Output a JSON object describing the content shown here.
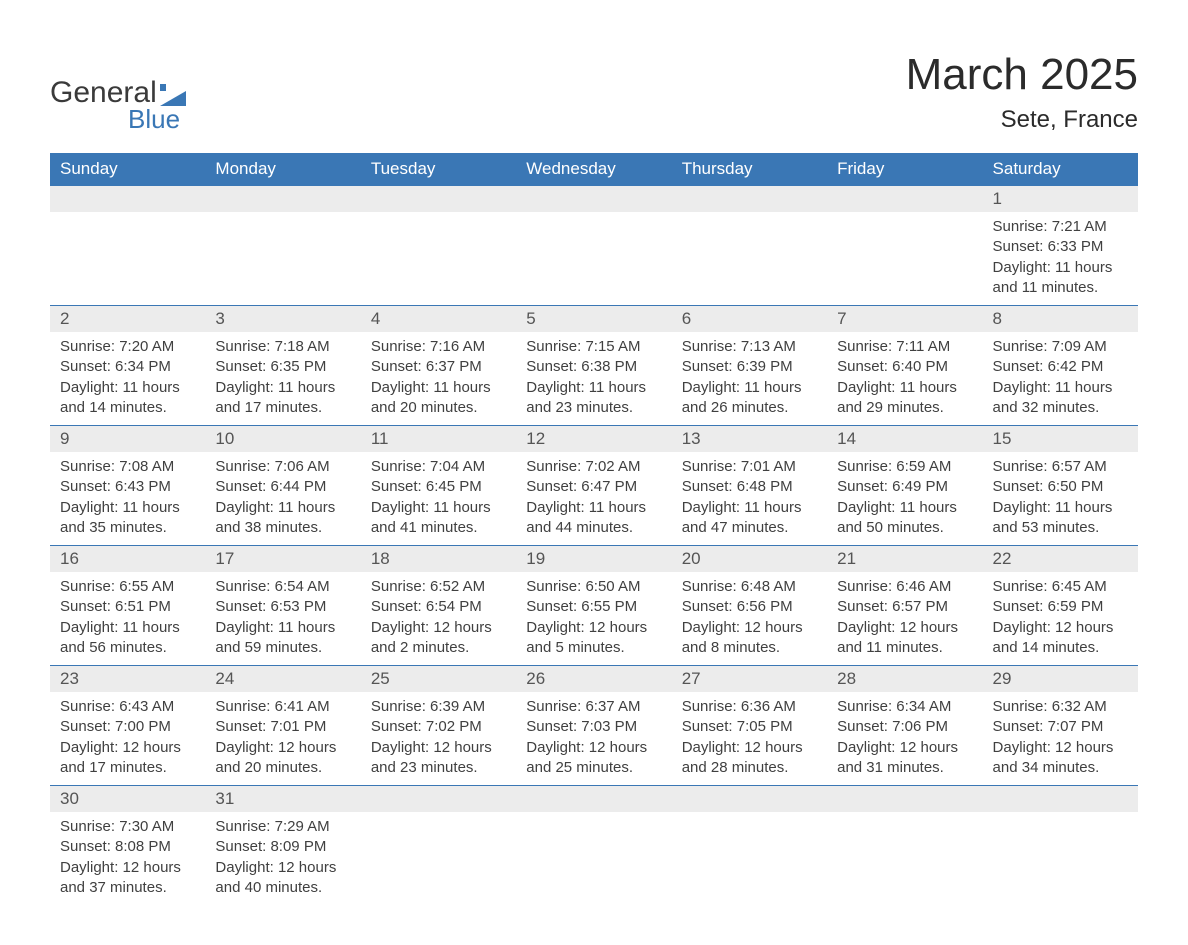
{
  "brand": {
    "top": "General",
    "bottom": "Blue",
    "accent": "#3a77b5"
  },
  "title": "March 2025",
  "location": "Sete, France",
  "day_headers": [
    "Sunday",
    "Monday",
    "Tuesday",
    "Wednesday",
    "Thursday",
    "Friday",
    "Saturday"
  ],
  "colors": {
    "header_bg": "#3a77b5",
    "header_text": "#ffffff",
    "daynum_bg": "#ececec",
    "row_border": "#3a77b5",
    "body_text": "#404040"
  },
  "weeks": [
    [
      null,
      null,
      null,
      null,
      null,
      null,
      {
        "n": "1",
        "sunrise": "7:21 AM",
        "sunset": "6:33 PM",
        "daylight": "11 hours and 11 minutes."
      }
    ],
    [
      {
        "n": "2",
        "sunrise": "7:20 AM",
        "sunset": "6:34 PM",
        "daylight": "11 hours and 14 minutes."
      },
      {
        "n": "3",
        "sunrise": "7:18 AM",
        "sunset": "6:35 PM",
        "daylight": "11 hours and 17 minutes."
      },
      {
        "n": "4",
        "sunrise": "7:16 AM",
        "sunset": "6:37 PM",
        "daylight": "11 hours and 20 minutes."
      },
      {
        "n": "5",
        "sunrise": "7:15 AM",
        "sunset": "6:38 PM",
        "daylight": "11 hours and 23 minutes."
      },
      {
        "n": "6",
        "sunrise": "7:13 AM",
        "sunset": "6:39 PM",
        "daylight": "11 hours and 26 minutes."
      },
      {
        "n": "7",
        "sunrise": "7:11 AM",
        "sunset": "6:40 PM",
        "daylight": "11 hours and 29 minutes."
      },
      {
        "n": "8",
        "sunrise": "7:09 AM",
        "sunset": "6:42 PM",
        "daylight": "11 hours and 32 minutes."
      }
    ],
    [
      {
        "n": "9",
        "sunrise": "7:08 AM",
        "sunset": "6:43 PM",
        "daylight": "11 hours and 35 minutes."
      },
      {
        "n": "10",
        "sunrise": "7:06 AM",
        "sunset": "6:44 PM",
        "daylight": "11 hours and 38 minutes."
      },
      {
        "n": "11",
        "sunrise": "7:04 AM",
        "sunset": "6:45 PM",
        "daylight": "11 hours and 41 minutes."
      },
      {
        "n": "12",
        "sunrise": "7:02 AM",
        "sunset": "6:47 PM",
        "daylight": "11 hours and 44 minutes."
      },
      {
        "n": "13",
        "sunrise": "7:01 AM",
        "sunset": "6:48 PM",
        "daylight": "11 hours and 47 minutes."
      },
      {
        "n": "14",
        "sunrise": "6:59 AM",
        "sunset": "6:49 PM",
        "daylight": "11 hours and 50 minutes."
      },
      {
        "n": "15",
        "sunrise": "6:57 AM",
        "sunset": "6:50 PM",
        "daylight": "11 hours and 53 minutes."
      }
    ],
    [
      {
        "n": "16",
        "sunrise": "6:55 AM",
        "sunset": "6:51 PM",
        "daylight": "11 hours and 56 minutes."
      },
      {
        "n": "17",
        "sunrise": "6:54 AM",
        "sunset": "6:53 PM",
        "daylight": "11 hours and 59 minutes."
      },
      {
        "n": "18",
        "sunrise": "6:52 AM",
        "sunset": "6:54 PM",
        "daylight": "12 hours and 2 minutes."
      },
      {
        "n": "19",
        "sunrise": "6:50 AM",
        "sunset": "6:55 PM",
        "daylight": "12 hours and 5 minutes."
      },
      {
        "n": "20",
        "sunrise": "6:48 AM",
        "sunset": "6:56 PM",
        "daylight": "12 hours and 8 minutes."
      },
      {
        "n": "21",
        "sunrise": "6:46 AM",
        "sunset": "6:57 PM",
        "daylight": "12 hours and 11 minutes."
      },
      {
        "n": "22",
        "sunrise": "6:45 AM",
        "sunset": "6:59 PM",
        "daylight": "12 hours and 14 minutes."
      }
    ],
    [
      {
        "n": "23",
        "sunrise": "6:43 AM",
        "sunset": "7:00 PM",
        "daylight": "12 hours and 17 minutes."
      },
      {
        "n": "24",
        "sunrise": "6:41 AM",
        "sunset": "7:01 PM",
        "daylight": "12 hours and 20 minutes."
      },
      {
        "n": "25",
        "sunrise": "6:39 AM",
        "sunset": "7:02 PM",
        "daylight": "12 hours and 23 minutes."
      },
      {
        "n": "26",
        "sunrise": "6:37 AM",
        "sunset": "7:03 PM",
        "daylight": "12 hours and 25 minutes."
      },
      {
        "n": "27",
        "sunrise": "6:36 AM",
        "sunset": "7:05 PM",
        "daylight": "12 hours and 28 minutes."
      },
      {
        "n": "28",
        "sunrise": "6:34 AM",
        "sunset": "7:06 PM",
        "daylight": "12 hours and 31 minutes."
      },
      {
        "n": "29",
        "sunrise": "6:32 AM",
        "sunset": "7:07 PM",
        "daylight": "12 hours and 34 minutes."
      }
    ],
    [
      {
        "n": "30",
        "sunrise": "7:30 AM",
        "sunset": "8:08 PM",
        "daylight": "12 hours and 37 minutes."
      },
      {
        "n": "31",
        "sunrise": "7:29 AM",
        "sunset": "8:09 PM",
        "daylight": "12 hours and 40 minutes."
      },
      null,
      null,
      null,
      null,
      null
    ]
  ],
  "labels": {
    "sunrise": "Sunrise: ",
    "sunset": "Sunset: ",
    "daylight": "Daylight: "
  }
}
